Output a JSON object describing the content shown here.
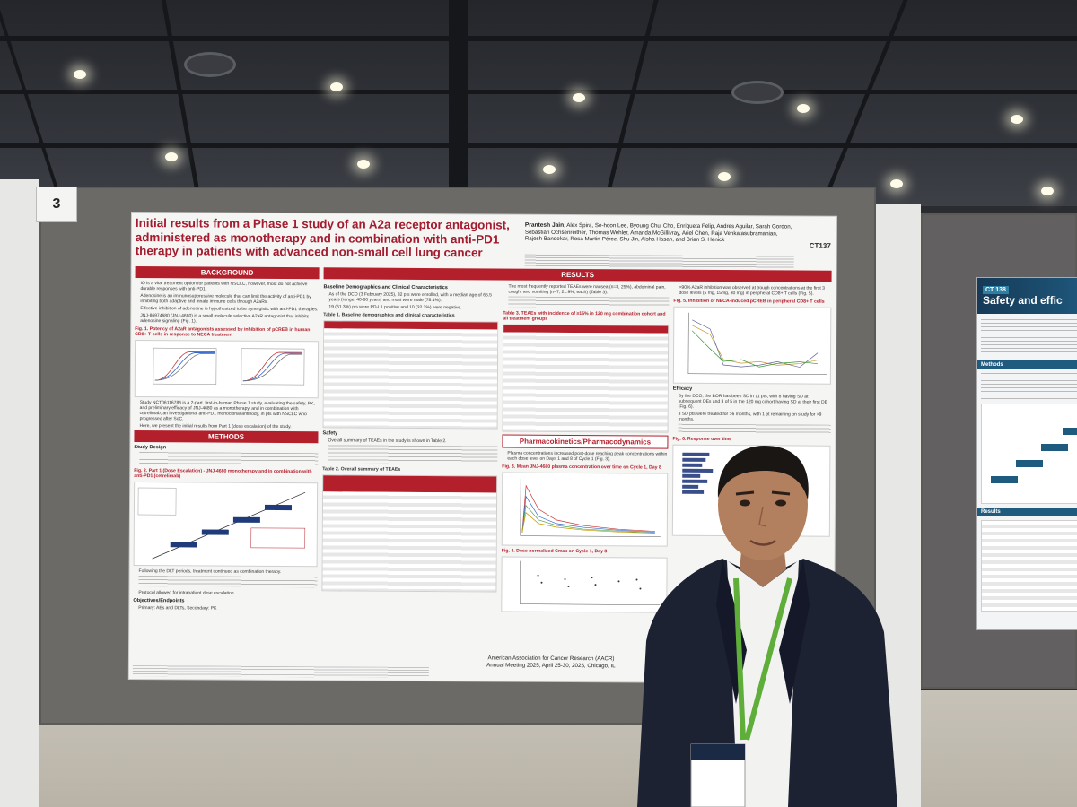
{
  "booth": {
    "number": "3"
  },
  "poster": {
    "title": "Initial results from a Phase 1 study of an A2a receptor antagonist, administered as monotherapy and in combination with anti-PD1 therapy in patients with advanced non-small cell lung cancer",
    "authors_lead": "Prantesh Jain",
    "authors": "Alex Spira, Se-hoon Lee, Byoung Chul Cho, Enriqueta Felip, Andres Aguilar, Sarah Gordon, Sebastian Ochsenreither, Thomas Wehler, Amanda McGillivray, Ariel Chen, Raja Venkatasubramanian, Rajesh Bandekar, Rosa Martin-Pérez, Shu Jin, Aisha Hasan, and Brian S. Henick",
    "code": "CT137",
    "footer_line1": "American Association for Cancer Research (AACR)",
    "footer_line2": "Annual Meeting 2025, April 25-30, 2025, Chicago, IL",
    "sections": {
      "background": "BACKGROUND",
      "methods": "METHODS",
      "results": "RESULTS",
      "study_design": "Study Design",
      "objectives": "Objectives/Endpoints",
      "baseline": "Baseline Demographics and Clinical Characteristics",
      "safety": "Safety",
      "pkpd": "Pharmacokinetics/Pharmacodynamics",
      "efficacy": "Efficacy",
      "response": "Fig. 6. Response over time"
    },
    "bullets": {
      "b1": "IO is a vital treatment option for patients with NSCLC, however, most do not achieve durable responses with anti-PD1.",
      "b2": "Adenosine is an immunosuppressive molecule that can limit the activity of anti-PD1 by inhibiting both adaptive and innate immune cells through A2aRs.",
      "b3": "Effective inhibition of adenosine is hypothesized to be synergistic with anti-PD1 therapies.",
      "b4": "JNJ-86974680 (JNJ-4680) is a small molecule selective A2aR antagonist that inhibits adenosine signaling (Fig. 1).",
      "b5": "Study NCT06116786 is a 2-part, first-in-human Phase 1 study, evaluating the safety, PK, and preliminary efficacy of JNJ-4680 as a monotherapy, and in combination with cetrelimab, an investigational anti-PD1 monoclonal antibody, in pts with NSCLC who progressed after SoC.",
      "b6": "Here, we present the initial results from Part 1 (dose escalation) of the study.",
      "b7": "Following the DLT periods, treatment continued as combination therapy.",
      "b8": "Protocol allowed for intrapatient dose escalation.",
      "b9": "Primary: AEs and DLTs, Secondary: PK",
      "r1": "As of the DCO (3 February 2025), 32 pts were enrolled, with a median age of 65.5 years (range: 40-86 years) and most were male (78.1%).",
      "r2": "19 (61.3%) pts were PD-L1 positive and 10 (32.3%) were negative.",
      "r3": "Overall summary of TEAEs in the study is shown in Table 2.",
      "r4": "The most frequently reported TEAEs were nausea (n=8, 25%), abdominal pain, cough, and vomiting (n=7, 21.9%, each) (Table 3).",
      "r5": "Plasma concentrations increased post-dose reaching peak concentrations within each dose level on Days 1 and 8 of Cycle 1 (Fig. 3).",
      "r6": ">90% A2aR inhibition was observed at trough concentrations at the first 3 dose levels (5 mg, 15mg, 30 mg) in peripheral CD8+ T cells (Fig. 5).",
      "r7": "By the DCO, the BOR has been SD in 11 pts, with 8 having SD at subsequent DEs and 3 of 5 in the 120 mg cohort having SD at their first DE (Fig. 6).",
      "r8": "3 SD pts were treated for >6 months, with 1 pt remaining on study for >9 months."
    },
    "fig_caps": {
      "fig1": "Fig. 1. Potency of A2aR antagonists assessed by inhibition of pCREB in human CD8+ T cells in response to NECA treatment",
      "fig2": "Fig. 2. Part 1 (Dose Escalation) - JNJ-4680 monotherapy and in combination with anti-PD1 (cetrelimab)",
      "tbl1": "Table 1. Baseline demographics and clinical characteristics",
      "tbl2": "Table 2. Overall summary of TEAEs",
      "tbl3": "Table 3. TEAEs with incidence of ≥15% in 120 mg combination cohort and all treatment groups",
      "fig3": "Fig. 3. Mean JNJ-4680 plasma concentration over time on Cycle 1, Day 8",
      "fig4": "Fig. 4. Dose normalized Cmax on Cycle 1, Day 8",
      "fig5": "Fig. 5. Inhibition of NECA-induced pCREB in peripheral CD8+ T cells"
    }
  },
  "poster2": {
    "code": "CT 138",
    "title": "Safety and effic",
    "section1": "Methods",
    "section2": "Results"
  },
  "colors": {
    "accent_red": "#b3202c",
    "title_red": "#a31b2e",
    "poster2_blue": "#1f5a7f"
  }
}
